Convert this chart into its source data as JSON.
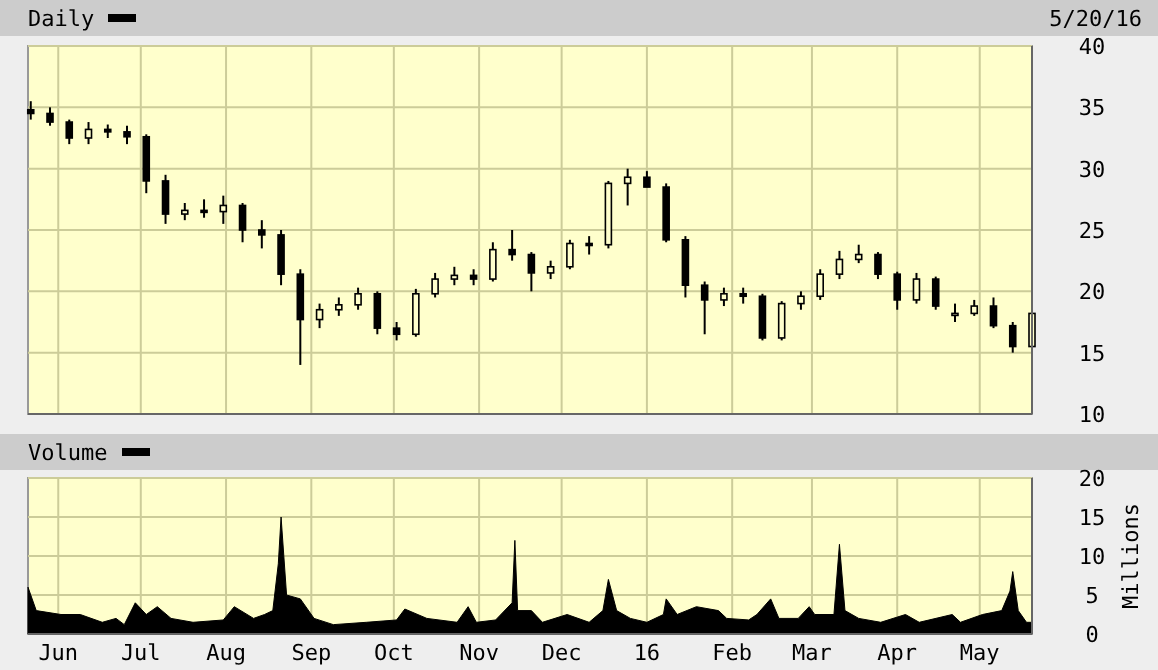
{
  "chart_data": [
    {
      "type": "candlestick",
      "annotations": [
        "5/20/16"
      ],
      "legend": "top left",
      "grid": true,
      "tick_labels": "y",
      "x": [
        "2015-05-22",
        "2015-05-29",
        "2015-06-05",
        "2015-06-12",
        "2015-06-19",
        "2015-06-26",
        "2015-07-03",
        "2015-07-10",
        "2015-07-17",
        "2015-07-24",
        "2015-07-31",
        "2015-08-07",
        "2015-08-14",
        "2015-08-21",
        "2015-08-28",
        "2015-09-04",
        "2015-09-11",
        "2015-09-18",
        "2015-09-25",
        "2015-10-02",
        "2015-10-09",
        "2015-10-16",
        "2015-10-23",
        "2015-10-30",
        "2015-11-06",
        "2015-11-13",
        "2015-11-20",
        "2015-11-27",
        "2015-12-04",
        "2015-12-11",
        "2015-12-18",
        "2015-12-25",
        "2016-01-01",
        "2016-01-08",
        "2016-01-15",
        "2016-01-22",
        "2016-01-29",
        "2016-02-05",
        "2016-02-12",
        "2016-02-19",
        "2016-02-26",
        "2016-03-04",
        "2016-03-11",
        "2016-03-18",
        "2016-03-25",
        "2016-04-01",
        "2016-04-08",
        "2016-04-15",
        "2016-04-22",
        "2016-04-29",
        "2016-05-06",
        "2016-05-13",
        "2016-05-20"
      ],
      "series": [
        {
          "name": "Daily",
          "color": "#000000",
          "ohlc": [
            [
              34.8,
              35.5,
              34,
              34.5
            ],
            [
              34.5,
              35,
              33.5,
              33.8
            ],
            [
              33.8,
              34,
              32,
              32.5
            ],
            [
              32.5,
              33.8,
              32,
              33.2
            ],
            [
              33.2,
              33.6,
              32.5,
              33
            ],
            [
              33,
              33.5,
              32,
              32.6
            ],
            [
              32.6,
              32.8,
              28,
              29
            ],
            [
              29,
              29.5,
              25.5,
              26.3
            ],
            [
              26.3,
              27.2,
              25.8,
              26.6
            ],
            [
              26.6,
              27.5,
              26,
              26.5
            ],
            [
              26.5,
              27.8,
              25.5,
              27
            ],
            [
              27,
              27.2,
              24,
              25
            ],
            [
              25,
              25.8,
              23.5,
              24.6
            ],
            [
              24.6,
              25,
              20.5,
              21.4
            ],
            [
              21.4,
              21.8,
              14,
              17.7
            ],
            [
              17.7,
              19,
              17,
              18.5
            ],
            [
              18.5,
              19.5,
              18,
              18.9
            ],
            [
              18.9,
              20.3,
              18.5,
              19.8
            ],
            [
              19.8,
              20,
              16.5,
              17
            ],
            [
              17,
              17.5,
              16,
              16.5
            ],
            [
              16.5,
              20.2,
              16.3,
              19.8
            ],
            [
              19.8,
              21.5,
              19.5,
              21
            ],
            [
              21,
              22,
              20.5,
              21.3
            ],
            [
              21.3,
              21.8,
              20.5,
              21
            ],
            [
              21,
              24,
              20.8,
              23.4
            ],
            [
              23.4,
              25,
              22.5,
              23
            ],
            [
              23,
              23.2,
              20,
              21.5
            ],
            [
              21.5,
              22.5,
              21,
              22
            ],
            [
              22,
              24.2,
              21.8,
              23.9
            ],
            [
              23.9,
              24.5,
              23,
              23.8
            ],
            [
              23.8,
              29,
              23.5,
              28.8
            ],
            [
              28.8,
              30,
              27,
              29.3
            ],
            [
              29.3,
              29.8,
              28.5,
              28.5
            ],
            [
              28.5,
              28.8,
              24,
              24.2
            ],
            [
              24.2,
              24.5,
              19.5,
              20.5
            ],
            [
              20.5,
              20.8,
              16.5,
              19.3
            ],
            [
              19.3,
              20.3,
              18.8,
              19.8
            ],
            [
              19.8,
              20.3,
              19,
              19.6
            ],
            [
              19.6,
              19.8,
              16,
              16.2
            ],
            [
              16.2,
              19.2,
              16,
              19
            ],
            [
              19,
              20,
              18.5,
              19.6
            ],
            [
              19.6,
              21.8,
              19.3,
              21.4
            ],
            [
              21.4,
              23.3,
              21,
              22.6
            ],
            [
              22.6,
              23.8,
              22.3,
              23
            ],
            [
              23,
              23.2,
              21,
              21.4
            ],
            [
              21.4,
              21.6,
              18.5,
              19.3
            ],
            [
              19.3,
              21.5,
              19,
              21
            ],
            [
              21,
              21.2,
              18.5,
              18.8
            ],
            [
              18.2,
              19,
              17.5,
              18.2
            ],
            [
              18.2,
              19.3,
              18,
              18.8
            ],
            [
              18.8,
              19.5,
              17,
              17.2
            ],
            [
              17.2,
              17.5,
              15,
              15.5
            ],
            [
              15.5,
              18.6,
              15.4,
              18.2
            ]
          ]
        }
      ],
      "xlim": [
        "2015-05-21",
        "2016-05-20"
      ],
      "xticks": [
        {
          "value": "2015-06-01",
          "label": null
        },
        {
          "value": "2015-07-01",
          "label": null
        },
        {
          "value": "2015-08-01",
          "label": null
        },
        {
          "value": "2015-09-01",
          "label": null
        },
        {
          "value": "2015-10-01",
          "label": null
        },
        {
          "value": "2015-11-01",
          "label": null
        },
        {
          "value": "2015-12-01",
          "label": null
        },
        {
          "value": "2016-01-01",
          "label": null
        },
        {
          "value": "2016-02-01",
          "label": null
        },
        {
          "value": "2016-03-01",
          "label": null
        },
        {
          "value": "2016-04-01",
          "label": null
        },
        {
          "value": "2016-05-01",
          "label": null
        }
      ],
      "ylim": [
        10,
        40
      ],
      "yticks": [
        10,
        15,
        20,
        25,
        30,
        35,
        40
      ]
    },
    {
      "type": "area",
      "ylabel": "Millions",
      "legend": "top left",
      "grid": true,
      "series": [
        {
          "name": "Volume",
          "color": "#000000",
          "x": [
            "2015-05-21",
            "2015-05-24",
            "2015-06-02",
            "2015-06-09",
            "2015-06-17",
            "2015-06-22",
            "2015-06-25",
            "2015-06-29",
            "2015-07-03",
            "2015-07-07",
            "2015-07-12",
            "2015-07-20",
            "2015-07-31",
            "2015-08-04",
            "2015-08-11",
            "2015-08-15",
            "2015-08-18",
            "2015-08-20",
            "2015-08-21",
            "2015-08-23",
            "2015-08-28",
            "2015-09-02",
            "2015-09-09",
            "2015-09-21",
            "2015-10-02",
            "2015-10-05",
            "2015-10-13",
            "2015-10-24",
            "2015-10-28",
            "2015-10-31",
            "2015-11-07",
            "2015-11-13",
            "2015-11-14",
            "2015-11-15",
            "2015-11-20",
            "2015-11-24",
            "2015-12-03",
            "2015-12-11",
            "2015-12-16",
            "2015-12-18",
            "2015-12-21",
            "2015-12-26",
            "2016-01-01",
            "2016-01-07",
            "2016-01-08",
            "2016-01-12",
            "2016-01-19",
            "2016-01-27",
            "2016-01-30",
            "2016-02-07",
            "2016-02-10",
            "2016-02-15",
            "2016-02-18",
            "2016-02-25",
            "2016-02-29",
            "2016-03-02",
            "2016-03-09",
            "2016-03-11",
            "2016-03-13",
            "2016-03-18",
            "2016-03-26",
            "2016-04-04",
            "2016-04-09",
            "2016-04-21",
            "2016-04-24",
            "2016-05-02",
            "2016-05-09",
            "2016-05-12",
            "2016-05-13",
            "2016-05-15",
            "2016-05-18",
            "2016-05-20"
          ],
          "values": [
            6,
            3,
            2.5,
            2.5,
            1.5,
            2,
            1.2,
            4,
            2.5,
            3.5,
            2,
            1.5,
            1.8,
            3.5,
            2,
            2.5,
            3,
            9,
            15,
            5,
            4.5,
            2,
            1.2,
            1.5,
            1.8,
            3.2,
            2,
            1.5,
            3.5,
            1.5,
            1.8,
            4,
            12,
            3,
            3,
            1.5,
            2.5,
            1.5,
            3,
            7,
            3,
            2,
            1.5,
            2.5,
            4.5,
            2.5,
            3.5,
            3,
            2,
            1.8,
            2.5,
            4.5,
            2,
            2,
            3.5,
            2.5,
            2.5,
            11.5,
            3,
            2,
            1.5,
            2.5,
            1.5,
            2.5,
            1.5,
            2.5,
            3,
            5.5,
            8,
            3,
            1.5,
            1.5
          ]
        }
      ],
      "xlim": [
        "2015-05-21",
        "2016-05-20"
      ],
      "xticks": [
        {
          "value": "2015-06-01",
          "label": "Jun"
        },
        {
          "value": "2015-07-01",
          "label": "Jul"
        },
        {
          "value": "2015-08-01",
          "label": "Aug"
        },
        {
          "value": "2015-09-01",
          "label": "Sep"
        },
        {
          "value": "2015-10-01",
          "label": "Oct"
        },
        {
          "value": "2015-11-01",
          "label": "Nov"
        },
        {
          "value": "2015-12-01",
          "label": "Dec"
        },
        {
          "value": "2016-01-01",
          "label": "16"
        },
        {
          "value": "2016-02-01",
          "label": "Feb"
        },
        {
          "value": "2016-03-01",
          "label": "Mar"
        },
        {
          "value": "2016-04-01",
          "label": "Apr"
        },
        {
          "value": "2016-05-01",
          "label": "May"
        }
      ],
      "ylim": [
        0,
        20
      ],
      "yticks": [
        0,
        5,
        10,
        15,
        20
      ]
    }
  ]
}
